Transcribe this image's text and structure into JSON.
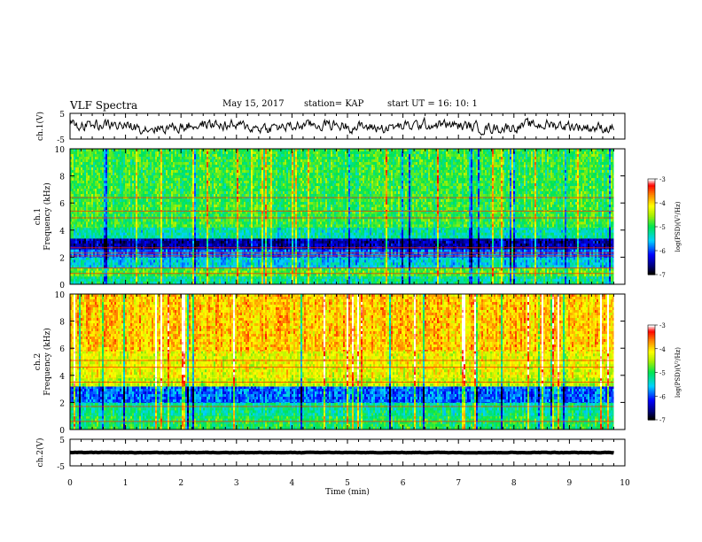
{
  "header": {
    "title": "VLF Spectra",
    "date": "May 15, 2017",
    "station": "station= KAP",
    "start": "start  UT =   16: 10: 1"
  },
  "panels": {
    "ch1_wave_ylabel": "ch.1(V)",
    "ch1_spec_ylabel": "ch.1\nFrequency (kHz)",
    "ch2_spec_ylabel": "ch.2\nFrequency (kHz)",
    "ch2_wave_ylabel": "ch.2(V)",
    "xlabel": "Time (min)"
  },
  "colorbar": {
    "label": "log(PSD)(V²/Hz)",
    "ticks": [
      "-3",
      "-4",
      "-5",
      "-6",
      "-7"
    ]
  },
  "chart_data": [
    {
      "type": "line",
      "name": "ch1-waveform",
      "ylabel": "ch.1(V)",
      "xlim": [
        0,
        10
      ],
      "ylim": [
        -5,
        5
      ],
      "yticks": [
        "5",
        "-5"
      ],
      "data_extent_x": [
        0,
        9.8
      ],
      "baseline": 0,
      "amplitude_approx": 2.5
    },
    {
      "type": "heatmap",
      "name": "ch1-spectrogram",
      "ylabel": "ch.1 Frequency (kHz)",
      "xlim": [
        0,
        10
      ],
      "ylim": [
        0,
        10
      ],
      "yticks": [
        "0",
        "2",
        "4",
        "6",
        "8",
        "10"
      ],
      "data_extent_x": [
        0,
        9.8
      ],
      "color_scale": "log(PSD)(V²/Hz)",
      "clim": [
        -7,
        -3
      ],
      "bands_khz": [
        {
          "f0": 0.0,
          "f1": 0.6,
          "log_psd": -5.2
        },
        {
          "f0": 0.6,
          "f1": 1.2,
          "log_psd": -4.8
        },
        {
          "f0": 1.2,
          "f1": 2.0,
          "log_psd": -5.5
        },
        {
          "f0": 2.0,
          "f1": 2.6,
          "log_psd": -5.9
        },
        {
          "f0": 2.6,
          "f1": 3.4,
          "log_psd": -6.5
        },
        {
          "f0": 3.4,
          "f1": 4.2,
          "log_psd": -5.3
        },
        {
          "f0": 4.2,
          "f1": 5.4,
          "log_psd": -4.9
        },
        {
          "f0": 5.4,
          "f1": 10.0,
          "log_psd": -4.9
        }
      ],
      "lines_khz": [
        0.8,
        1.2,
        2.1,
        2.3,
        2.7,
        4.9,
        5.4,
        6.4
      ]
    },
    {
      "type": "heatmap",
      "name": "ch2-spectrogram",
      "ylabel": "ch.2 Frequency (kHz)",
      "xlim": [
        0,
        10
      ],
      "ylim": [
        0,
        10
      ],
      "yticks": [
        "0",
        "2",
        "4",
        "6",
        "8",
        "10"
      ],
      "data_extent_x": [
        0,
        9.8
      ],
      "color_scale": "log(PSD)(V²/Hz)",
      "clim": [
        -7,
        -3
      ],
      "bands_khz": [
        {
          "f0": 0.0,
          "f1": 1.0,
          "log_psd": -5.0
        },
        {
          "f0": 1.0,
          "f1": 2.0,
          "log_psd": -5.2
        },
        {
          "f0": 2.0,
          "f1": 3.2,
          "log_psd": -5.9
        },
        {
          "f0": 3.2,
          "f1": 3.8,
          "log_psd": -4.4
        },
        {
          "f0": 3.8,
          "f1": 5.8,
          "log_psd": -4.2
        },
        {
          "f0": 5.8,
          "f1": 10.0,
          "log_psd": -3.9
        }
      ],
      "lines_khz": [
        0.6,
        1.7,
        3.5,
        4.6,
        5.1
      ]
    },
    {
      "type": "line",
      "name": "ch2-waveform",
      "ylabel": "ch.2(V)",
      "xlim": [
        0,
        10
      ],
      "ylim": [
        -5,
        5
      ],
      "yticks": [
        "5",
        "-5"
      ],
      "data_extent_x": [
        0,
        9.8
      ],
      "baseline": 0,
      "amplitude_approx": 0.1
    }
  ],
  "x_ticks": [
    "0",
    "1",
    "2",
    "3",
    "4",
    "5",
    "6",
    "7",
    "8",
    "9",
    "10"
  ]
}
